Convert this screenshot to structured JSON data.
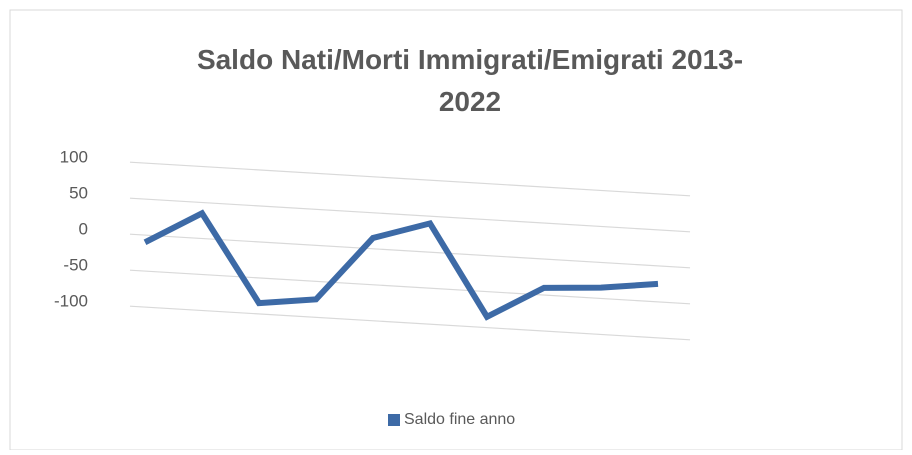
{
  "chart_data": {
    "type": "line",
    "title": "Saldo Nati/Morti  Immigrati/Emigrati 2013-2022",
    "categories": [
      null,
      null,
      null,
      null,
      null,
      null,
      null,
      null,
      null,
      null
    ],
    "series": [
      {
        "name": "Saldo fine anno",
        "color": "#3d6aa6",
        "values": [
          -10,
          35,
          -85,
          -75,
          15,
          40,
          -85,
          -40,
          -35,
          -25
        ]
      }
    ],
    "ylim": [
      -100,
      100
    ],
    "yticks": [
      -100,
      -50,
      0,
      50,
      100
    ],
    "grid": true,
    "legend": "bottom"
  }
}
